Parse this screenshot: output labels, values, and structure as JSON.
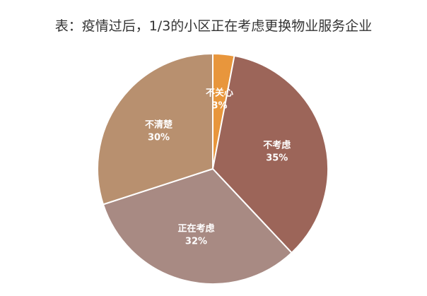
{
  "chart_data": {
    "type": "pie",
    "title": "表：疫情过后，1/3的小区正在考虑更换物业服务企业",
    "slices": [
      {
        "label": "不关心",
        "value": 3,
        "value_label": "3%",
        "color": "#E8963C"
      },
      {
        "label": "不考虑",
        "value": 35,
        "value_label": "35%",
        "color": "#9C6559"
      },
      {
        "label": "正在考虑",
        "value": 32,
        "value_label": "32%",
        "color": "#A88A83"
      },
      {
        "label": "不清楚",
        "value": 30,
        "value_label": "30%",
        "color": "#B8906F"
      }
    ],
    "legend": "none"
  }
}
